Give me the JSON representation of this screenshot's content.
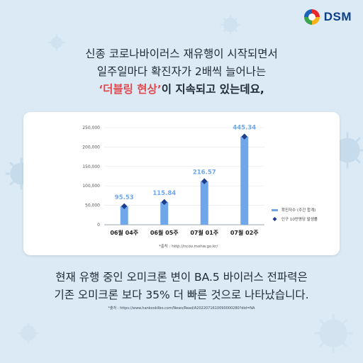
{
  "brand": {
    "name": "DSM"
  },
  "headline": {
    "line1": "신종 코로나바이러스 재유행이 시작되면서",
    "line2": "일주일마다 확진자가 2배씩 늘어나는",
    "quote": "‘더블링 현상’",
    "line3_rest": "이 지속되고 있는데요,"
  },
  "chart_data": {
    "type": "bar",
    "categories": [
      "06월 04주",
      "06월 05주",
      "07월 01주",
      "07월 02주"
    ],
    "series": [
      {
        "name": "확진자수 (주간 합계)",
        "kind": "bar",
        "values": [
          47700,
          58500,
          112000,
          227000
        ],
        "color": "#6fa7ea"
      },
      {
        "name": "인구 10만명당 발생률",
        "kind": "marker",
        "values": [
          95.53,
          115.84,
          216.57,
          445.34
        ],
        "color": "#1e3d8f"
      }
    ],
    "data_labels": [
      "95.53",
      "115.84",
      "216.57",
      "445.34"
    ],
    "yticks": [
      "0",
      "50,000",
      "100,000",
      "150,000",
      "200,000",
      "250,000"
    ],
    "ylim": [
      0,
      250000
    ],
    "legend_position": "right",
    "source": "*출처 : http://ncov.mohw.go.kr/"
  },
  "bottom": {
    "line1": "현재 유행 중인 오미크론 변이 BA.5 바이러스 전파력은",
    "line2": "기존 오미크론 보다 35% 더 빠른 것으로 나타났습니다."
  },
  "footnote": "*출처 : https://www.hankookilbo.com/News/Read/A2022071610090000280?did=NA"
}
